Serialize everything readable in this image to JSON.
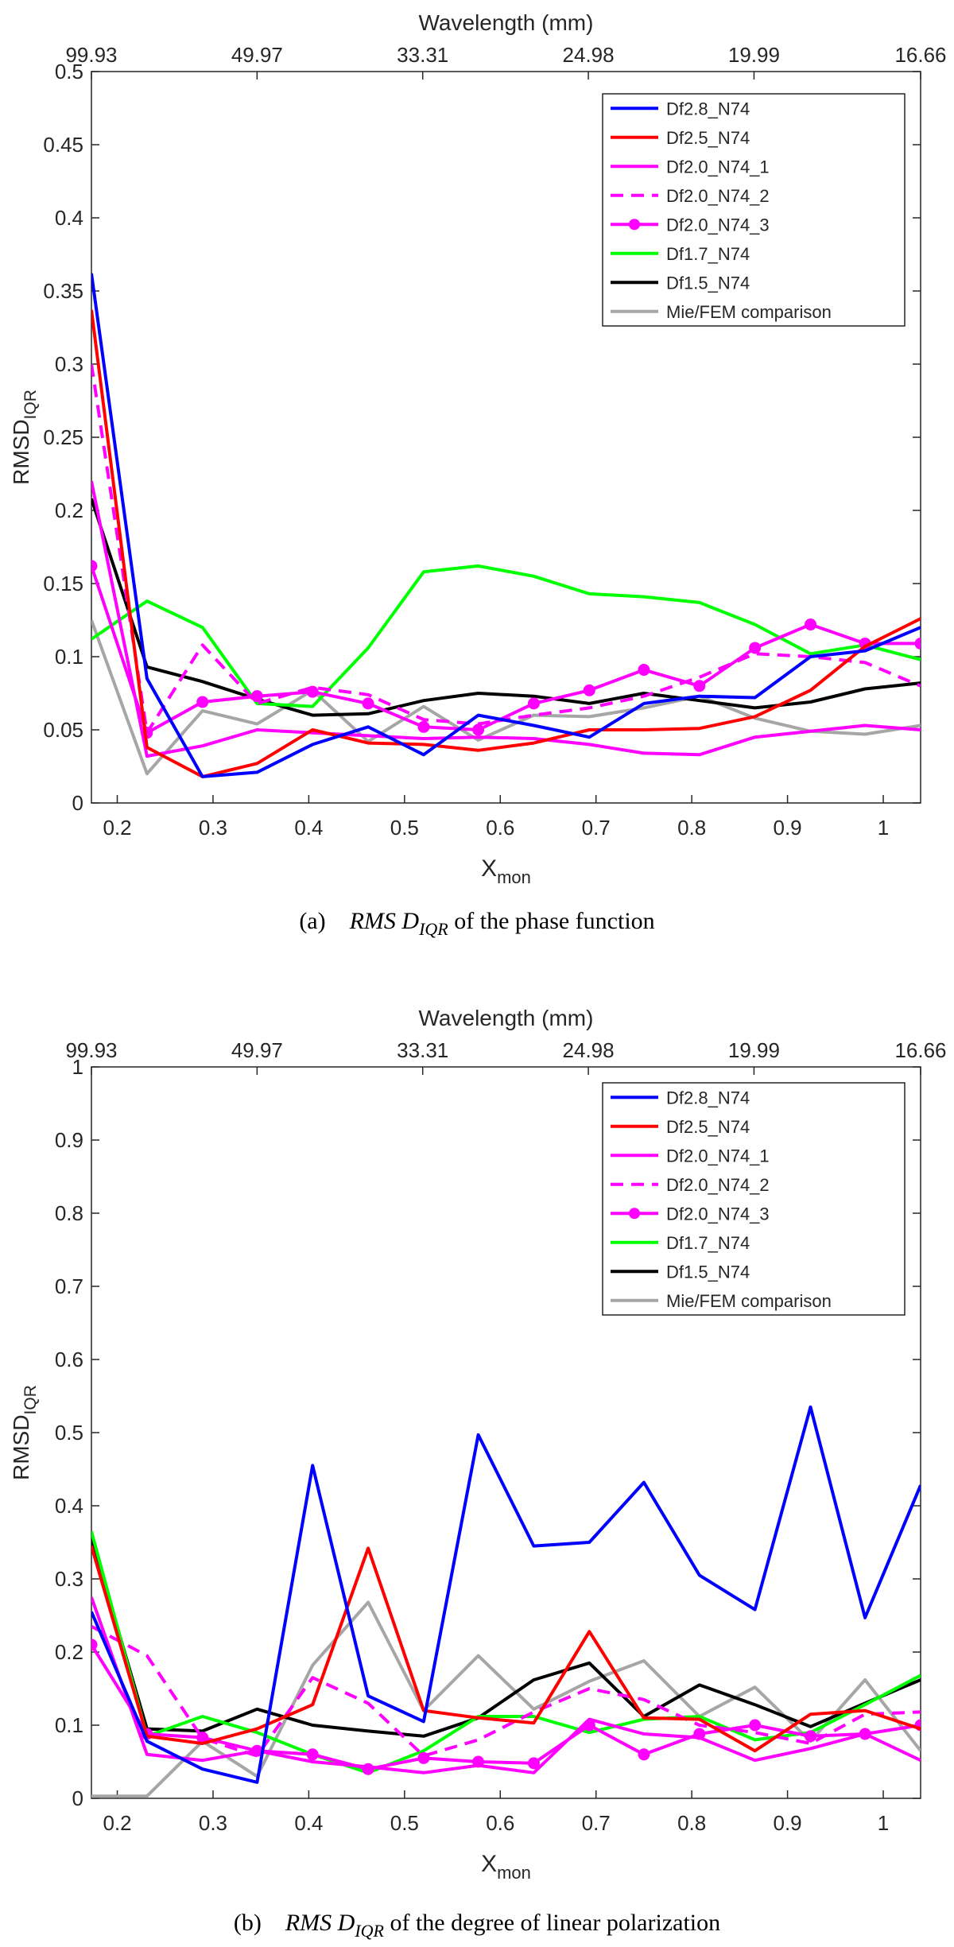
{
  "colors": {
    "Df2.8_N74": "#0000ff",
    "Df2.5_N74": "#ff0000",
    "Df2.0_N74_1": "#ff00ff",
    "Df2.0_N74_2": "#ff00ff",
    "Df2.0_N74_3": "#ff00ff",
    "Df1.7_N74": "#00ff00",
    "Df1.5_N74": "#000000",
    "Mie/FEM comparison": "#a6a6a6"
  },
  "chart_data": [
    {
      "type": "line",
      "top_axis_label": "Wavelength (mm)",
      "top_ticks": [
        "99.93",
        "49.97",
        "33.31",
        "24.98",
        "19.99",
        "16.66"
      ],
      "xlabel_main": "X",
      "xlabel_sub": "mon",
      "ylabel_main": "RMSD",
      "ylabel_sub": "IQR",
      "xlim": [
        0.173,
        1.039
      ],
      "ylim": [
        0,
        0.5
      ],
      "xticks": [
        "0.2",
        "0.3",
        "0.4",
        "0.5",
        "0.6",
        "0.7",
        "0.8",
        "0.9",
        "1"
      ],
      "yticks": [
        "0",
        "0.05",
        "0.1",
        "0.15",
        "0.2",
        "0.25",
        "0.3",
        "0.35",
        "0.4",
        "0.45",
        "0.5"
      ],
      "legend_position": "top-right",
      "caption_prefix": "(a)",
      "caption_main": "RMS D",
      "caption_sub": "IQR",
      "caption_rest": "of the phase function",
      "x": [
        0.173,
        0.231,
        0.289,
        0.346,
        0.404,
        0.462,
        0.52,
        0.577,
        0.635,
        0.693,
        0.75,
        0.808,
        0.866,
        0.924,
        0.981,
        1.039
      ],
      "series": [
        {
          "name": "Df2.8_N74",
          "style": "solid",
          "values": [
            0.362,
            0.085,
            0.018,
            0.021,
            0.04,
            0.052,
            0.033,
            0.06,
            0.053,
            0.045,
            0.068,
            0.073,
            0.072,
            0.1,
            0.104,
            0.12
          ]
        },
        {
          "name": "Df2.5_N74",
          "style": "solid",
          "values": [
            0.337,
            0.038,
            0.018,
            0.027,
            0.05,
            0.041,
            0.04,
            0.036,
            0.041,
            0.05,
            0.05,
            0.051,
            0.059,
            0.077,
            0.107,
            0.126
          ]
        },
        {
          "name": "Df2.0_N74_1",
          "style": "solid",
          "values": [
            0.22,
            0.032,
            0.039,
            0.05,
            0.048,
            0.046,
            0.044,
            0.045,
            0.044,
            0.04,
            0.034,
            0.033,
            0.045,
            0.049,
            0.053,
            0.05
          ]
        },
        {
          "name": "Df2.0_N74_2",
          "style": "dashed",
          "values": [
            0.3,
            0.048,
            0.108,
            0.068,
            0.079,
            0.074,
            0.057,
            0.054,
            0.06,
            0.065,
            0.073,
            0.086,
            0.102,
            0.1,
            0.096,
            0.08
          ]
        },
        {
          "name": "Df2.0_N74_3",
          "style": "marker",
          "values": [
            0.162,
            0.048,
            0.069,
            0.073,
            0.076,
            0.068,
            0.052,
            0.05,
            0.068,
            0.077,
            0.091,
            0.08,
            0.106,
            0.122,
            0.109,
            0.109
          ]
        },
        {
          "name": "Df1.7_N74",
          "style": "solid",
          "values": [
            0.112,
            0.138,
            0.12,
            0.068,
            0.066,
            0.106,
            0.158,
            0.162,
            0.155,
            0.143,
            0.141,
            0.137,
            0.122,
            0.102,
            0.108,
            0.098
          ]
        },
        {
          "name": "Df1.5_N74",
          "style": "solid",
          "values": [
            0.208,
            0.093,
            0.083,
            0.071,
            0.06,
            0.061,
            0.07,
            0.075,
            0.073,
            0.068,
            0.075,
            0.07,
            0.065,
            0.069,
            0.078,
            0.082
          ]
        },
        {
          "name": "Mie/FEM comparison",
          "style": "solid",
          "values": [
            0.125,
            0.02,
            0.063,
            0.054,
            0.077,
            0.042,
            0.066,
            0.043,
            0.06,
            0.059,
            0.065,
            0.073,
            0.058,
            0.049,
            0.047,
            0.053
          ]
        }
      ]
    },
    {
      "type": "line",
      "top_axis_label": "Wavelength (mm)",
      "top_ticks": [
        "99.93",
        "49.97",
        "33.31",
        "24.98",
        "19.99",
        "16.66"
      ],
      "xlabel_main": "X",
      "xlabel_sub": "mon",
      "ylabel_main": "RMSD",
      "ylabel_sub": "IQR",
      "xlim": [
        0.173,
        1.039
      ],
      "ylim": [
        0,
        1
      ],
      "xticks": [
        "0.2",
        "0.3",
        "0.4",
        "0.5",
        "0.6",
        "0.7",
        "0.8",
        "0.9",
        "1"
      ],
      "yticks": [
        "0",
        "0.1",
        "0.2",
        "0.3",
        "0.4",
        "0.5",
        "0.6",
        "0.7",
        "0.8",
        "0.9",
        "1"
      ],
      "legend_position": "top-right",
      "caption_prefix": "(b)",
      "caption_main": "RMS D",
      "caption_sub": "IQR",
      "caption_rest": "of the degree of linear polarization",
      "x": [
        0.173,
        0.231,
        0.289,
        0.346,
        0.404,
        0.462,
        0.52,
        0.577,
        0.635,
        0.693,
        0.75,
        0.808,
        0.866,
        0.924,
        0.981,
        1.039
      ],
      "series": [
        {
          "name": "Df2.8_N74",
          "style": "solid",
          "values": [
            0.255,
            0.078,
            0.04,
            0.022,
            0.455,
            0.14,
            0.105,
            0.497,
            0.345,
            0.35,
            0.432,
            0.305,
            0.258,
            0.535,
            0.247,
            0.428
          ]
        },
        {
          "name": "Df2.5_N74",
          "style": "solid",
          "values": [
            0.345,
            0.085,
            0.075,
            0.095,
            0.128,
            0.342,
            0.12,
            0.11,
            0.103,
            0.228,
            0.11,
            0.108,
            0.065,
            0.115,
            0.12,
            0.095
          ]
        },
        {
          "name": "Df2.0_N74_1",
          "style": "solid",
          "values": [
            0.275,
            0.06,
            0.052,
            0.065,
            0.05,
            0.043,
            0.035,
            0.045,
            0.035,
            0.108,
            0.088,
            0.083,
            0.052,
            0.068,
            0.088,
            0.052
          ]
        },
        {
          "name": "Df2.0_N74_2",
          "style": "dashed",
          "values": [
            0.235,
            0.195,
            0.082,
            0.058,
            0.165,
            0.13,
            0.058,
            0.08,
            0.118,
            0.15,
            0.135,
            0.1,
            0.09,
            0.075,
            0.115,
            0.118
          ]
        },
        {
          "name": "Df2.0_N74_3",
          "style": "marker",
          "values": [
            0.21,
            0.088,
            0.083,
            0.065,
            0.06,
            0.04,
            0.055,
            0.05,
            0.048,
            0.1,
            0.06,
            0.088,
            0.1,
            0.085,
            0.088,
            0.1
          ]
        },
        {
          "name": "Df1.7_N74",
          "style": "solid",
          "values": [
            0.365,
            0.085,
            0.112,
            0.09,
            0.06,
            0.035,
            0.065,
            0.112,
            0.112,
            0.09,
            0.108,
            0.112,
            0.08,
            0.09,
            0.128,
            0.168
          ]
        },
        {
          "name": "Df1.5_N74",
          "style": "solid",
          "values": [
            0.355,
            0.095,
            0.092,
            0.122,
            0.1,
            0.092,
            0.085,
            0.11,
            0.162,
            0.185,
            0.112,
            0.155,
            0.128,
            0.098,
            0.13,
            0.162
          ]
        },
        {
          "name": "Mie/FEM comparison",
          "style": "solid",
          "values": [
            0.003,
            0.003,
            0.078,
            0.03,
            0.182,
            0.268,
            0.12,
            0.195,
            0.122,
            0.16,
            0.188,
            0.112,
            0.152,
            0.078,
            0.162,
            0.065
          ]
        }
      ]
    }
  ]
}
